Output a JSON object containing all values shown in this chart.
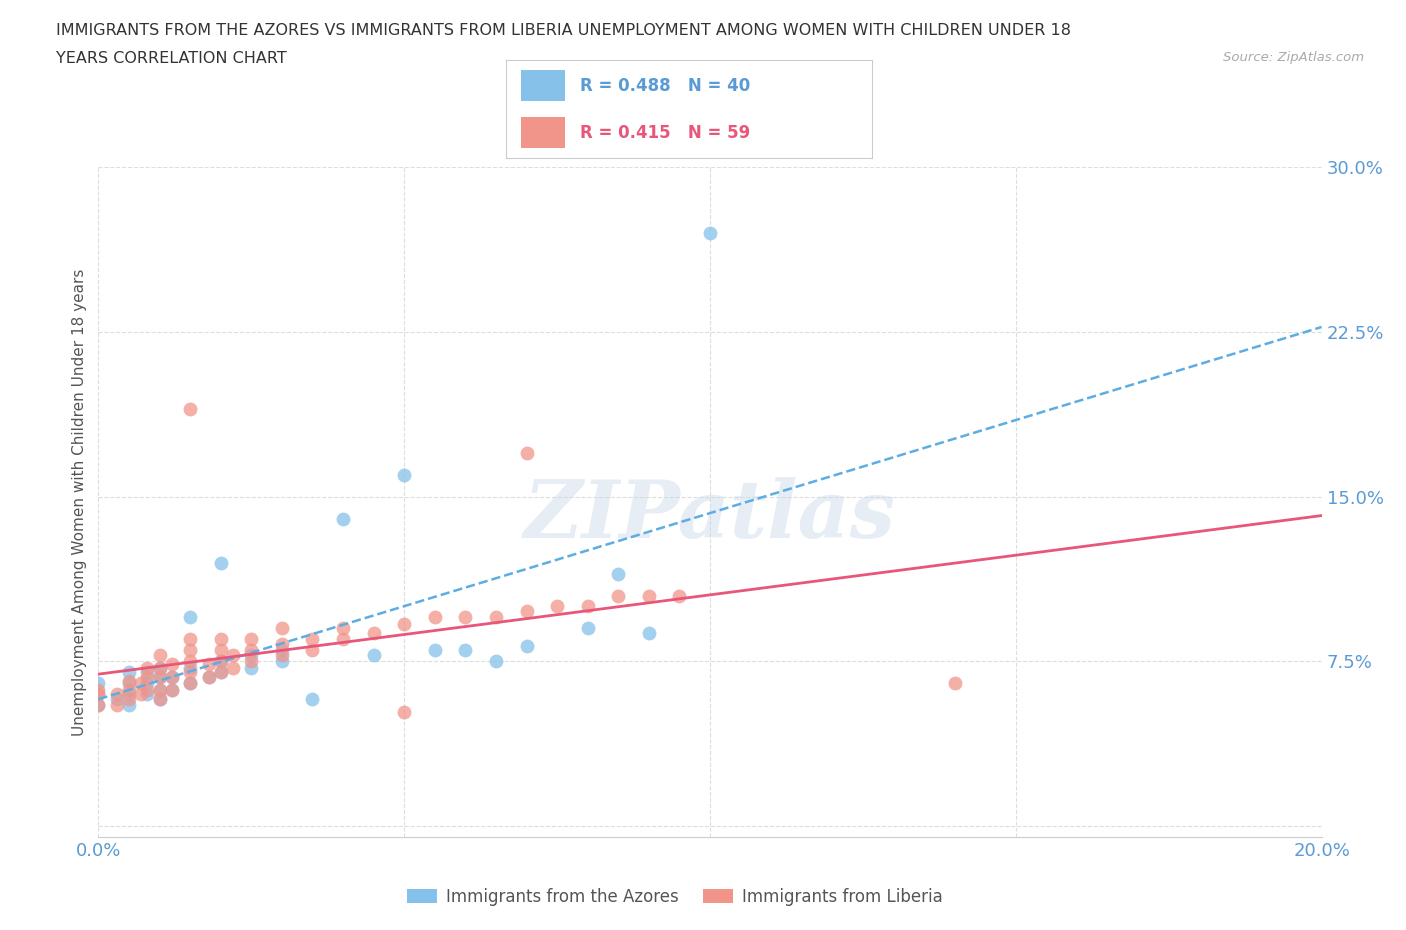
{
  "title_line1": "IMMIGRANTS FROM THE AZORES VS IMMIGRANTS FROM LIBERIA UNEMPLOYMENT AMONG WOMEN WITH CHILDREN UNDER 18",
  "title_line2": "YEARS CORRELATION CHART",
  "source_text": "Source: ZipAtlas.com",
  "xlim": [
    0,
    0.2
  ],
  "ylim": [
    -0.005,
    0.3
  ],
  "ytick_vals": [
    0.0,
    0.075,
    0.15,
    0.225,
    0.3
  ],
  "xtick_vals": [
    0.0,
    0.05,
    0.1,
    0.15,
    0.2
  ],
  "azores_color": "#85C1E9",
  "liberia_color": "#F1948A",
  "azores_line_color": "#5DADE2",
  "liberia_line_color": "#E8577A",
  "watermark_text": "ZIPatlas",
  "legend_r1_text": "R = 0.488",
  "legend_n1_text": "N = 40",
  "legend_r2_text": "R = 0.415",
  "legend_n2_text": "N = 59",
  "legend_label1": "Immigrants from the Azores",
  "legend_label2": "Immigrants from Liberia",
  "azores_scatter": [
    [
      0.0,
      0.055
    ],
    [
      0.0,
      0.06
    ],
    [
      0.0,
      0.065
    ],
    [
      0.003,
      0.058
    ],
    [
      0.005,
      0.055
    ],
    [
      0.005,
      0.06
    ],
    [
      0.005,
      0.065
    ],
    [
      0.005,
      0.07
    ],
    [
      0.008,
      0.06
    ],
    [
      0.008,
      0.065
    ],
    [
      0.008,
      0.07
    ],
    [
      0.01,
      0.058
    ],
    [
      0.01,
      0.062
    ],
    [
      0.01,
      0.068
    ],
    [
      0.01,
      0.072
    ],
    [
      0.012,
      0.062
    ],
    [
      0.012,
      0.068
    ],
    [
      0.015,
      0.065
    ],
    [
      0.015,
      0.072
    ],
    [
      0.015,
      0.095
    ],
    [
      0.018,
      0.068
    ],
    [
      0.02,
      0.07
    ],
    [
      0.02,
      0.075
    ],
    [
      0.02,
      0.12
    ],
    [
      0.025,
      0.072
    ],
    [
      0.025,
      0.078
    ],
    [
      0.03,
      0.075
    ],
    [
      0.03,
      0.08
    ],
    [
      0.035,
      0.058
    ],
    [
      0.04,
      0.14
    ],
    [
      0.045,
      0.078
    ],
    [
      0.05,
      0.16
    ],
    [
      0.055,
      0.08
    ],
    [
      0.06,
      0.08
    ],
    [
      0.065,
      0.075
    ],
    [
      0.07,
      0.082
    ],
    [
      0.08,
      0.09
    ],
    [
      0.085,
      0.115
    ],
    [
      0.09,
      0.088
    ],
    [
      0.1,
      0.27
    ]
  ],
  "liberia_scatter": [
    [
      0.0,
      0.055
    ],
    [
      0.0,
      0.06
    ],
    [
      0.0,
      0.062
    ],
    [
      0.003,
      0.055
    ],
    [
      0.003,
      0.06
    ],
    [
      0.005,
      0.058
    ],
    [
      0.005,
      0.062
    ],
    [
      0.005,
      0.066
    ],
    [
      0.007,
      0.06
    ],
    [
      0.007,
      0.065
    ],
    [
      0.008,
      0.062
    ],
    [
      0.008,
      0.068
    ],
    [
      0.008,
      0.072
    ],
    [
      0.01,
      0.058
    ],
    [
      0.01,
      0.062
    ],
    [
      0.01,
      0.068
    ],
    [
      0.01,
      0.072
    ],
    [
      0.01,
      0.078
    ],
    [
      0.012,
      0.062
    ],
    [
      0.012,
      0.068
    ],
    [
      0.012,
      0.074
    ],
    [
      0.015,
      0.065
    ],
    [
      0.015,
      0.07
    ],
    [
      0.015,
      0.075
    ],
    [
      0.015,
      0.08
    ],
    [
      0.015,
      0.085
    ],
    [
      0.015,
      0.19
    ],
    [
      0.018,
      0.068
    ],
    [
      0.018,
      0.074
    ],
    [
      0.02,
      0.07
    ],
    [
      0.02,
      0.075
    ],
    [
      0.02,
      0.08
    ],
    [
      0.02,
      0.085
    ],
    [
      0.022,
      0.072
    ],
    [
      0.022,
      0.078
    ],
    [
      0.025,
      0.075
    ],
    [
      0.025,
      0.08
    ],
    [
      0.025,
      0.085
    ],
    [
      0.03,
      0.078
    ],
    [
      0.03,
      0.083
    ],
    [
      0.03,
      0.09
    ],
    [
      0.035,
      0.08
    ],
    [
      0.035,
      0.085
    ],
    [
      0.04,
      0.085
    ],
    [
      0.04,
      0.09
    ],
    [
      0.045,
      0.088
    ],
    [
      0.05,
      0.092
    ],
    [
      0.05,
      0.052
    ],
    [
      0.055,
      0.095
    ],
    [
      0.06,
      0.095
    ],
    [
      0.065,
      0.095
    ],
    [
      0.07,
      0.098
    ],
    [
      0.07,
      0.17
    ],
    [
      0.075,
      0.1
    ],
    [
      0.08,
      0.1
    ],
    [
      0.085,
      0.105
    ],
    [
      0.09,
      0.105
    ],
    [
      0.095,
      0.105
    ],
    [
      0.14,
      0.065
    ]
  ],
  "background_color": "#FFFFFF",
  "grid_color": "#DDDDDD",
  "tick_color": "#5B9BD5",
  "ylabel_text": "Unemployment Among Women with Children Under 18 years",
  "ylabel_color": "#555555"
}
